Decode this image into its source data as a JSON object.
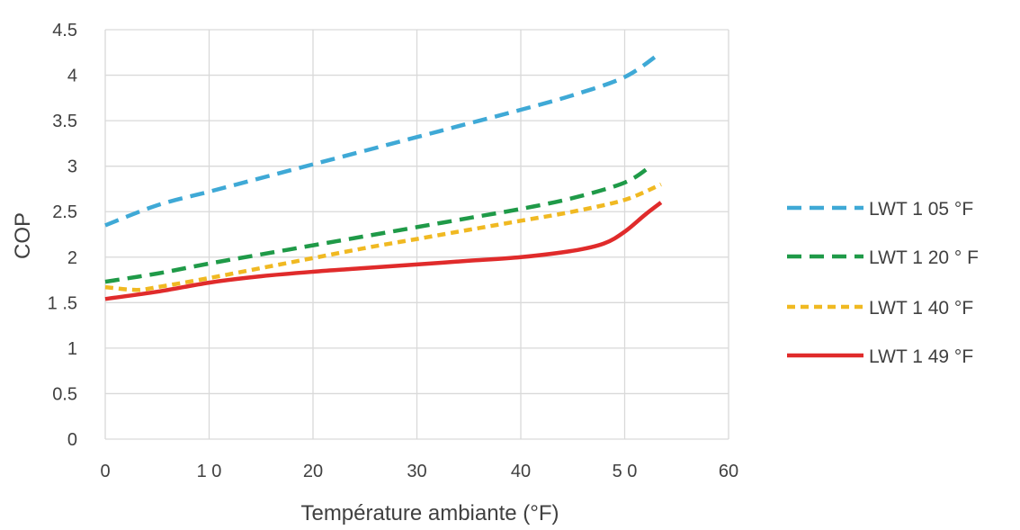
{
  "chart_data": {
    "type": "line",
    "title": "",
    "xlabel": "Température ambiante (°F)",
    "ylabel": "COP",
    "xlim": [
      0,
      60
    ],
    "ylim": [
      0,
      4.5
    ],
    "xticks": [
      0,
      10,
      20,
      30,
      40,
      50,
      60
    ],
    "yticks": [
      0,
      0.5,
      1,
      1.5,
      2,
      2.5,
      3,
      3.5,
      4,
      4.5
    ],
    "xtick_labels": [
      "0",
      "1 0",
      "20",
      "30",
      "40",
      "5 0",
      "60"
    ],
    "ytick_labels": [
      "0",
      "0.5",
      "1",
      "1 .5",
      "2",
      "2.5",
      "3",
      "3.5",
      "4",
      "4.5"
    ],
    "grid": true,
    "legend_position": "right",
    "series": [
      {
        "name": "LWT 1 05 °F",
        "color": "#3fa9d6",
        "style": "dashed",
        "x": [
          0,
          5,
          10,
          15,
          20,
          25,
          30,
          35,
          40,
          45,
          50,
          53.5
        ],
        "y": [
          2.35,
          2.57,
          2.72,
          2.87,
          3.02,
          3.17,
          3.32,
          3.47,
          3.62,
          3.78,
          3.98,
          4.25
        ]
      },
      {
        "name": "LWT 1 20 ° F",
        "color": "#1f9a48",
        "style": "dashed",
        "x": [
          0,
          5,
          10,
          15,
          20,
          25,
          30,
          35,
          40,
          45,
          50,
          52.5
        ],
        "y": [
          1.73,
          1.82,
          1.93,
          2.03,
          2.13,
          2.23,
          2.33,
          2.43,
          2.53,
          2.65,
          2.82,
          3.0
        ]
      },
      {
        "name": "LWT 1 40 °F",
        "color": "#f0b922",
        "style": "dotted",
        "x": [
          0,
          3,
          5,
          10,
          15,
          20,
          25,
          30,
          35,
          40,
          45,
          50,
          53.5
        ],
        "y": [
          1.67,
          1.64,
          1.67,
          1.77,
          1.88,
          1.99,
          2.1,
          2.2,
          2.3,
          2.4,
          2.5,
          2.63,
          2.8
        ]
      },
      {
        "name": "LWT 1 49 °F",
        "color": "#e02b2b",
        "style": "solid",
        "x": [
          0,
          5,
          10,
          15,
          20,
          25,
          30,
          35,
          40,
          45,
          48,
          50,
          52,
          53.5
        ],
        "y": [
          1.54,
          1.62,
          1.72,
          1.79,
          1.84,
          1.88,
          1.92,
          1.96,
          2.0,
          2.07,
          2.15,
          2.28,
          2.47,
          2.6
        ]
      }
    ]
  }
}
